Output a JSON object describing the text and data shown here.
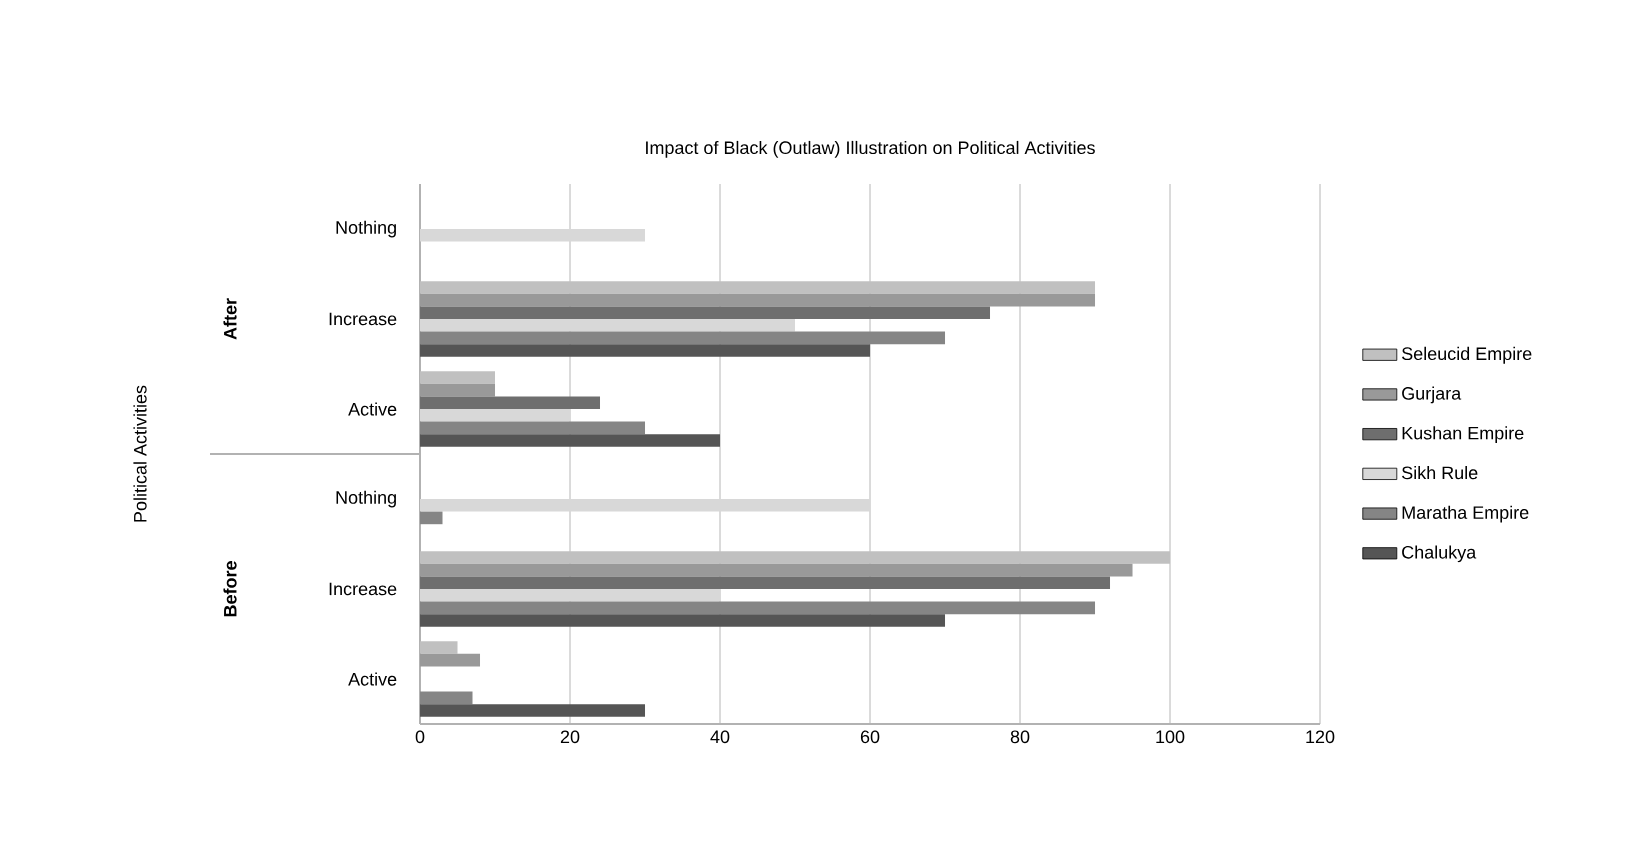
{
  "chart_data": {
    "type": "bar",
    "orientation": "horizontal",
    "title": "Impact of Black (Outlaw) Illustration on Political Activities",
    "categories": [
      "Nothing",
      "Increase",
      "Active",
      "Nothing",
      "Increase",
      "Active"
    ],
    "annotations": [
      "Political Activities",
      "After",
      "Before"
    ],
    "series": [
      {
        "name": "Seleucid Empire",
        "color": "#c0c0c0",
        "values": [
          null,
          90,
          10,
          null,
          100,
          5
        ]
      },
      {
        "name": "Gurjara",
        "color": "#999999",
        "values": [
          null,
          90,
          10,
          null,
          95,
          8
        ]
      },
      {
        "name": "Kushan Empire",
        "color": "#6e6e6e",
        "values": [
          null,
          76,
          24,
          null,
          92,
          null
        ]
      },
      {
        "name": "Sikh Rule",
        "color": "#d8d8d8",
        "values": [
          30,
          50,
          20,
          60,
          40,
          null
        ]
      },
      {
        "name": "Maratha Empire",
        "color": "#858585",
        "values": [
          null,
          70,
          30,
          3,
          90,
          7
        ]
      },
      {
        "name": "Chalukya",
        "color": "#555555",
        "values": [
          null,
          60,
          40,
          null,
          70,
          30
        ]
      }
    ],
    "xlim": [
      0,
      120
    ],
    "xticks": [
      0,
      20,
      40,
      60,
      80,
      100,
      120
    ],
    "grid": "x",
    "legend": "right"
  }
}
